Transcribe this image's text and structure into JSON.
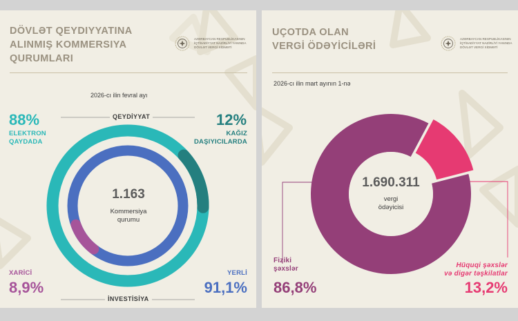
{
  "colors": {
    "background": "#f1eee4",
    "teal": "#2ab8b8",
    "dark_teal": "#247f7f",
    "blue": "#4b6fc0",
    "purple": "#a6549a",
    "plum": "#943f78",
    "pink": "#e63a72",
    "title": "#9a9180"
  },
  "left": {
    "title": [
      "DÖVLƏT QEYDIYYATINA",
      "ALINMIŞ KOMMERSIYA",
      "QURUMLARI"
    ],
    "logo_text": [
      "AZƏRBAYCAN RESPUBLİKASININ",
      "İQTİSADİYYAT NAZİRLİYİ YANINDA",
      "DÖVLƏT VERGİ XİDMƏTİ"
    ],
    "subtitle": "2026-cı ilin fevral ayı",
    "outer_axis_label": "QEYDİYYAT",
    "inner_axis_label": "İNVESTİSİYA",
    "electron_pct": "88%",
    "electron_label": [
      "ELEKTRON",
      "QAYDADA"
    ],
    "paper_pct": "12%",
    "paper_label": [
      "KAĞIZ",
      "DAŞIYICILARDA"
    ],
    "foreign_label": "XARİCİ",
    "foreign_pct": "8,9%",
    "local_label": "YERLİ",
    "local_pct": "91,1%",
    "center_value": "1.163",
    "center_text": [
      "Kommersiya",
      "qurumu"
    ]
  },
  "right": {
    "title": [
      "UÇOTDA OLAN",
      "VERGİ ÖDƏYİCİLƏRİ"
    ],
    "logo_text": [
      "AZƏRBAYCAN RESPUBLİKASININ",
      "İQTİSADİYYAT NAZİRLİYİ YANINDA",
      "DÖVLƏT VERGİ XİDMƏTİ"
    ],
    "subtitle": "2026-cı ilin mart ayının 1-nə",
    "center_value": "1.690.311",
    "center_text": [
      "vergi",
      "ödəyicisi"
    ],
    "physical_label": [
      "Fiziki",
      "şəxslər"
    ],
    "physical_pct": "86,8%",
    "legal_label": [
      "Hüquqi şəxslər",
      "və digər təşkilatlar"
    ],
    "legal_pct": "13,2%"
  },
  "chart_data": [
    {
      "type": "pie",
      "title": "Dövlət qeydiyyatına alınmış kommersiya qurumları",
      "subtitle": "2026-cı ilin fevral ayı",
      "ring": "QEYDİYYAT",
      "categories": [
        "Elektron qaydada",
        "Kağız daşıyıcılarda"
      ],
      "values": [
        88,
        12
      ],
      "total": 1163
    },
    {
      "type": "pie",
      "ring": "İNVESTİSİYA",
      "categories": [
        "Yerli",
        "Xarici"
      ],
      "values": [
        91.1,
        8.9
      ],
      "total": 1163
    },
    {
      "type": "pie",
      "title": "Uçotda olan vergi ödəyiciləri",
      "subtitle": "2026-cı ilin mart ayının 1-nə",
      "categories": [
        "Fiziki şəxslər",
        "Hüquqi şəxslər və digər təşkilatlar"
      ],
      "values": [
        86.8,
        13.2
      ],
      "total": 1690311
    }
  ]
}
